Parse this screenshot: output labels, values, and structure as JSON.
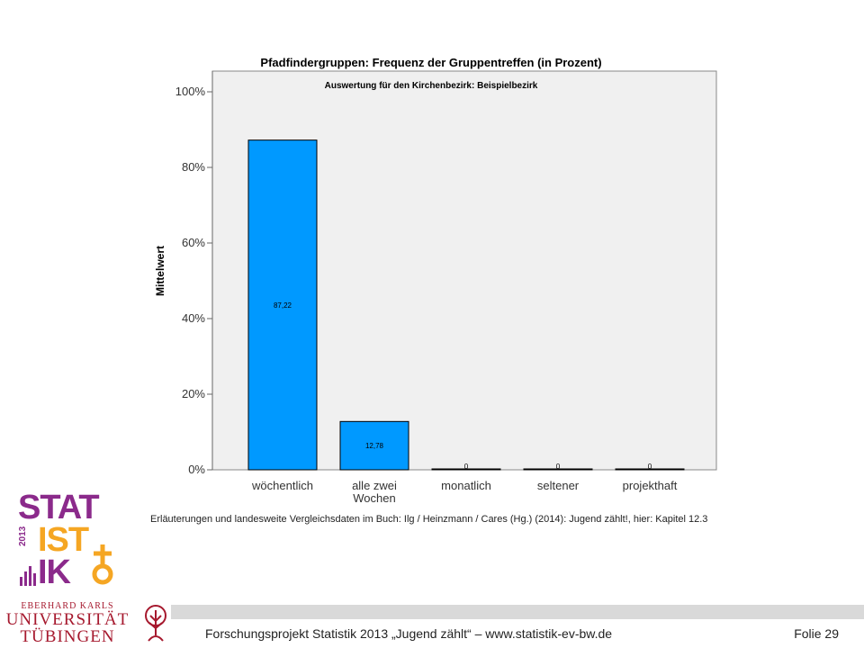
{
  "chart_data": {
    "type": "bar",
    "title": "Pfadfindergruppen: Frequenz der Gruppentreffen (in Prozent)",
    "subtitle": "Auswertung für den Kirchenbezirk: Beispielbezirk",
    "ylabel": "Mittelwert",
    "xlabel": "",
    "categories": [
      "wöchentlich",
      "alle zwei Wochen",
      "monatlich",
      "seltener",
      "projekthaft"
    ],
    "category_lines": [
      [
        "wöchentlich"
      ],
      [
        "alle zwei",
        "Wochen"
      ],
      [
        "monatlich"
      ],
      [
        "seltener"
      ],
      [
        "projekthaft"
      ]
    ],
    "values": [
      87.22,
      12.78,
      0,
      0,
      0
    ],
    "value_labels": [
      "87,22",
      "12,78",
      "0",
      "0",
      "0"
    ],
    "ylim": [
      0,
      100
    ],
    "yticks": [
      0,
      20,
      40,
      60,
      80,
      100
    ],
    "ytick_labels": [
      "0%",
      "20%",
      "40%",
      "60%",
      "80%",
      "100%"
    ],
    "grid": false,
    "colors": {
      "bar": "#0099ff",
      "bar_edge": "#000000",
      "plot_bg": "#f0f0f0"
    }
  },
  "note": "Erläuterungen und landesweite Vergleichsdaten im Buch: Ilg / Heinzmann / Cares (Hg.) (2014): Jugend zählt!, hier: Kapitel 12.3",
  "logo": {
    "stat": "STAT",
    "ist": "IST",
    "ik": "IK",
    "year": "2013",
    "colors": {
      "purple": "#8b2a8b",
      "orange": "#f5a623"
    }
  },
  "university": {
    "line1": "EBERHARD KARLS",
    "line2": "UNIVERSITÄT",
    "line3": "TÜBINGEN",
    "color": "#a6192e"
  },
  "footer": {
    "text": "Forschungsprojekt Statistik 2013 „Jugend zählt“ – www.statistik-ev-bw.de",
    "page": "Folie 29"
  }
}
